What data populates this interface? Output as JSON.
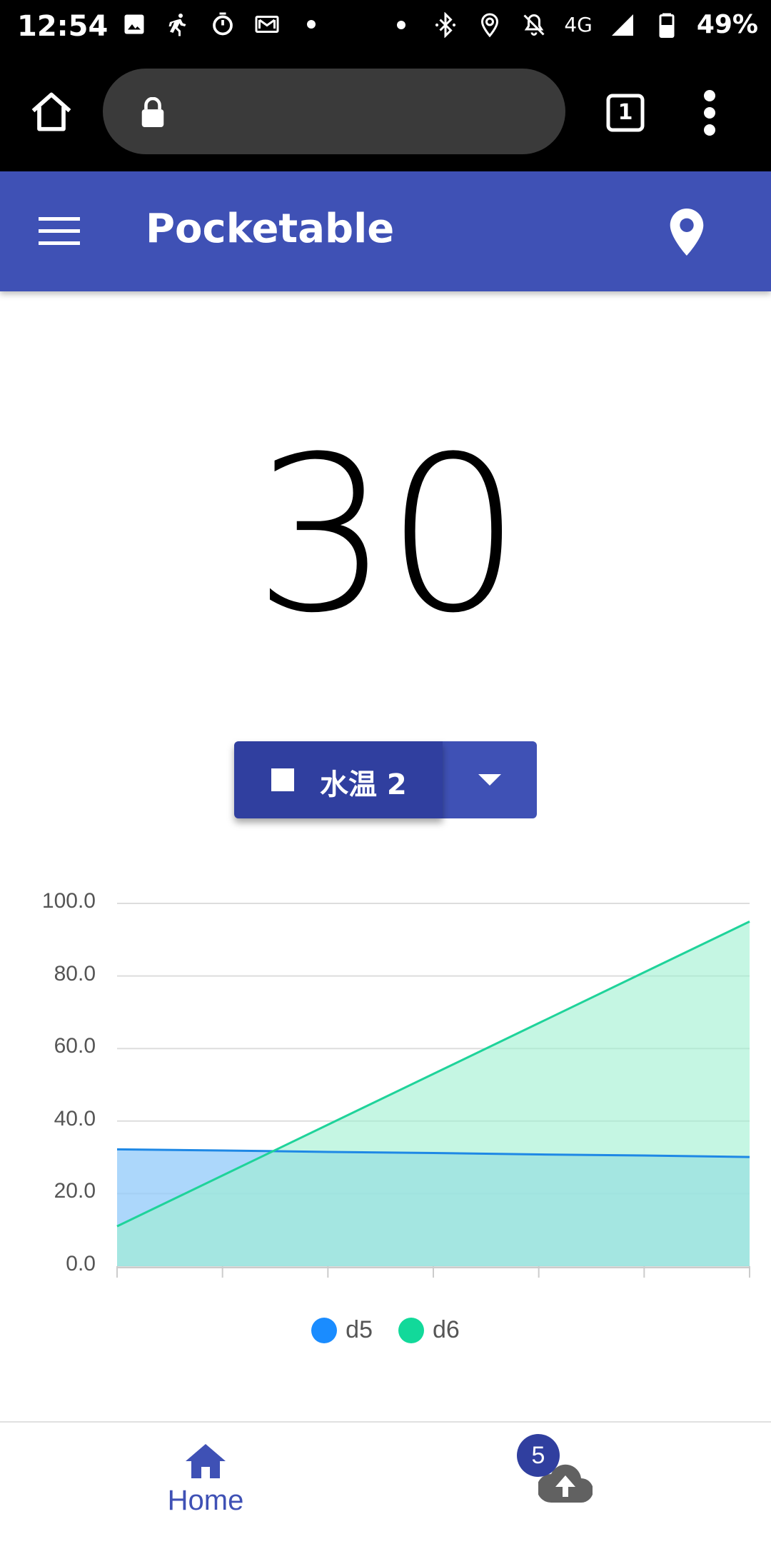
{
  "status_bar": {
    "time": "12:54",
    "network": "4G",
    "battery": "49%",
    "icons": [
      "image-icon",
      "running-icon",
      "stopwatch-icon",
      "mail-icon",
      "dot-icon",
      "dot-icon",
      "bluetooth-icon",
      "location-icon",
      "mute-icon",
      "signal-icon",
      "battery-icon"
    ]
  },
  "browser": {
    "tab_count": "1"
  },
  "app_bar": {
    "title": "Pocketable"
  },
  "main": {
    "value": "30",
    "selector_label": "水温 2"
  },
  "chart_data": {
    "type": "area",
    "y_ticks": [
      "100.0",
      "80.0",
      "60.0",
      "40.0",
      "20.0",
      "0.0"
    ],
    "ylim": [
      0,
      100
    ],
    "x_count": 7,
    "grid": true,
    "legend_placement": "bottom",
    "series": [
      {
        "name": "d5",
        "color": "#1e88e5",
        "fill": "#90caf9",
        "values": [
          32.2,
          31.9,
          31.5,
          31.2,
          30.8,
          30.5,
          30.1
        ]
      },
      {
        "name": "d6",
        "color": "#1fd39a",
        "fill": "#9ff0d0",
        "values": [
          11.0,
          25.0,
          39.0,
          53.0,
          67.0,
          81.0,
          95.0
        ]
      }
    ]
  },
  "bottom_nav": {
    "home_label": "Home",
    "upload_badge": "5"
  }
}
